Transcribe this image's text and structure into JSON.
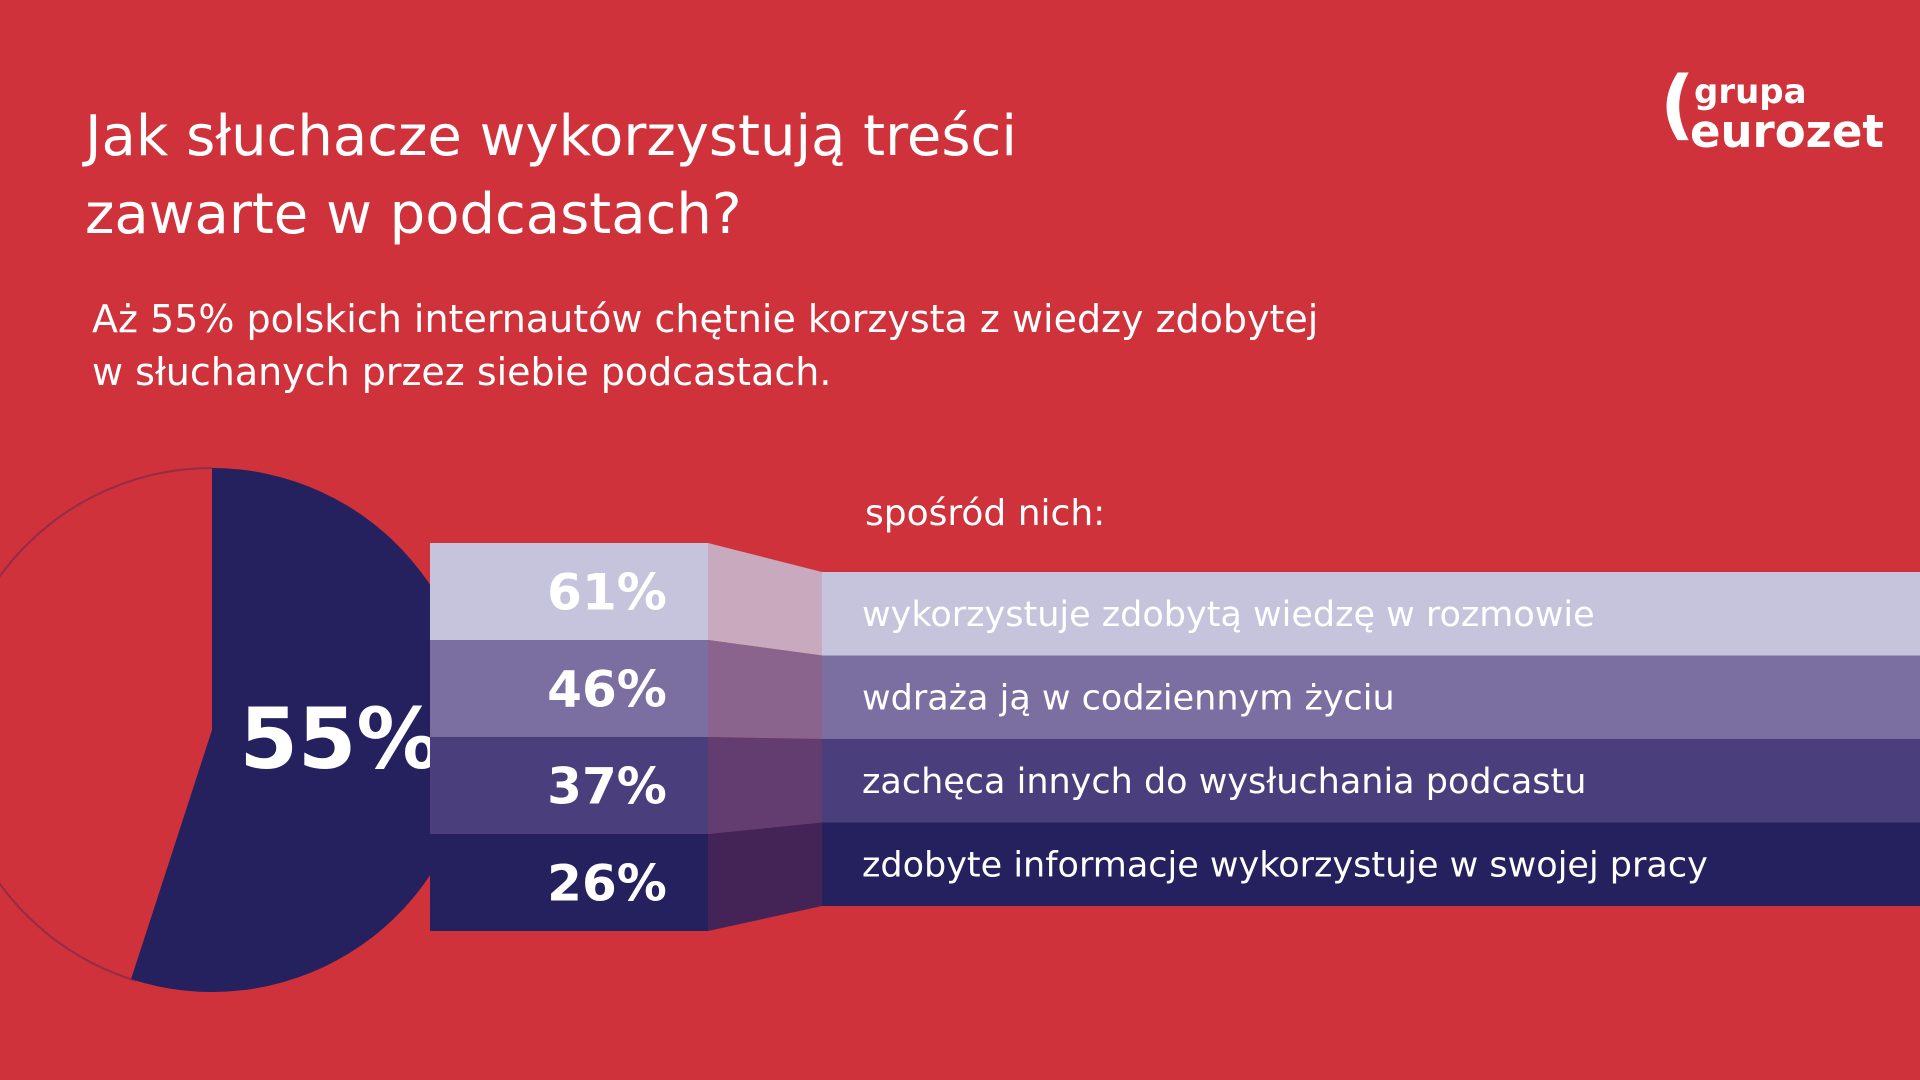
{
  "title": {
    "line1": "Jak słuchacze wykorzystują treści",
    "line2": "zawarte w podcastach?"
  },
  "subtitle": {
    "line1": "Aż 55% polskich internautów chętnie korzysta z wiedzy zdobytej",
    "line2": "w słuchanych przez siebie podcastach."
  },
  "logo": {
    "paren": "(",
    "top": "grupa",
    "bottom": "eurozet"
  },
  "intro_label": "spośród nich:",
  "colors": {
    "background": "#cf323a",
    "pie_dark": "#25215e",
    "row_1": "#c6c3dc",
    "row_2": "#7a6fa0",
    "row_3": "#4a3f7c",
    "row_4": "#25215e",
    "white": "#ffffff"
  },
  "chart_data": [
    {
      "type": "pie",
      "values": [
        55,
        45
      ],
      "data_labels": [
        "55%",
        ""
      ]
    },
    {
      "type": "bar",
      "categories": [
        "wykorzystuje zdobytą wiedzę w rozmowie",
        "wdraża ją w codziennym życiu",
        "zachęca innych do wysłuchania podcastu",
        "zdobyte informacje wykorzystuje w swojej pracy"
      ],
      "values": [
        61,
        46,
        37,
        26
      ],
      "data_labels": [
        "61%",
        "46%",
        "37%",
        "26%"
      ]
    }
  ]
}
